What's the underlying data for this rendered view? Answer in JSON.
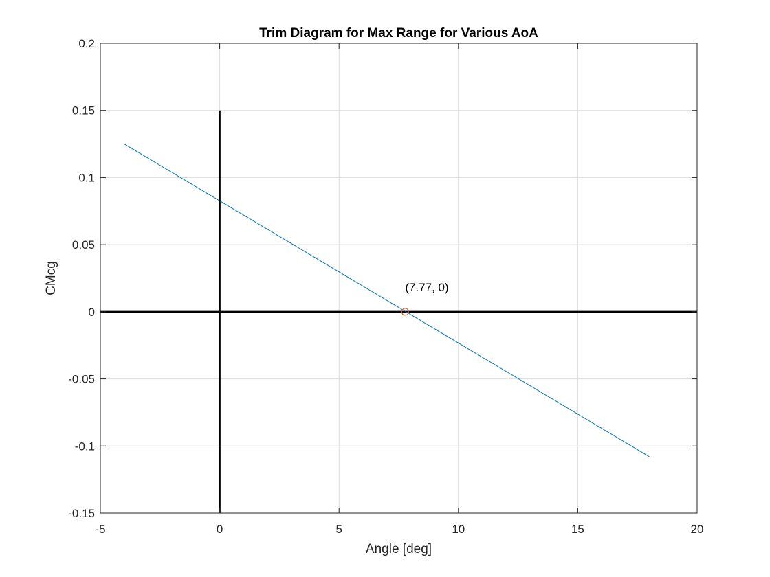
{
  "chart_data": {
    "type": "line",
    "title": "Trim Diagram for Max Range for Various AoA",
    "xlabel": "Angle [deg]",
    "ylabel": "CMcg",
    "xlim": [
      -5,
      20
    ],
    "ylim": [
      -0.15,
      0.2
    ],
    "xticks": [
      -5,
      0,
      5,
      10,
      15,
      20
    ],
    "yticks": [
      -0.15,
      -0.1,
      -0.05,
      0,
      0.05,
      0.1,
      0.15,
      0.2
    ],
    "xtick_labels": [
      "-5",
      "0",
      "5",
      "10",
      "15",
      "20"
    ],
    "ytick_labels": [
      "-0.15",
      "-0.1",
      "-0.05",
      "0",
      "0.05",
      "0.1",
      "0.15",
      "0.2"
    ],
    "grid": true,
    "series": [
      {
        "x": [
          -4,
          18
        ],
        "y": [
          0.125,
          -0.108
        ],
        "color": "#0072BD"
      }
    ],
    "reference_lines": [
      {
        "orientation": "horizontal",
        "y": 0,
        "x_range": [
          -5,
          20
        ],
        "color": "#000000"
      },
      {
        "orientation": "vertical",
        "x": 0,
        "y_range": [
          -0.15,
          0.15
        ],
        "color": "#000000"
      }
    ],
    "markers": [
      {
        "x": 7.77,
        "y": 0,
        "shape": "circle",
        "color": "#D95319"
      }
    ],
    "annotations": [
      {
        "text": "(7.77, 0)",
        "x": 7.77,
        "y": 0
      }
    ]
  }
}
